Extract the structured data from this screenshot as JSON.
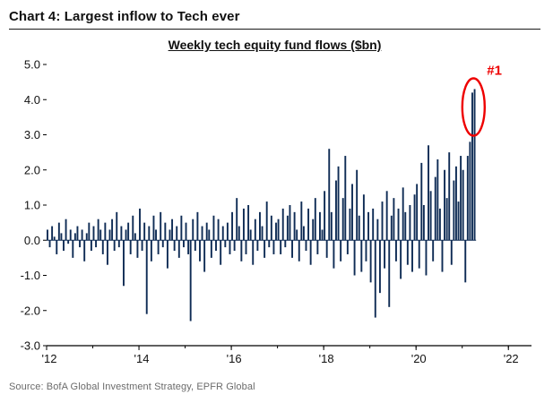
{
  "page": {
    "title": "Chart 4: Largest inflow to Tech ever",
    "source": "Source: BofA Global Investment Strategy, EPFR Global"
  },
  "chart_data": {
    "type": "bar",
    "title": "Weekly tech equity fund flows ($bn)",
    "ylabel": "",
    "xlabel": "",
    "ylim": [
      -3.0,
      5.0
    ],
    "y_tick_labels": [
      "5.0",
      "4.0",
      "3.0",
      "2.0",
      "1.0",
      "0.0",
      "-1.0",
      "-2.0",
      "-3.0"
    ],
    "x_axis": {
      "range_years": [
        2012,
        2022.5
      ],
      "major_ticks": [
        2012,
        2014,
        2016,
        2018,
        2020,
        2022
      ],
      "tick_labels": [
        "'12",
        "'14",
        "'16",
        "'18",
        "'20",
        "'22"
      ]
    },
    "series_start_year": 2012,
    "series_end_year": 2021.3,
    "bar_color": "#0f2c55",
    "grid": false,
    "legend": false,
    "annotation": {
      "label": "#1",
      "color": "#ee0000",
      "target": "max"
    },
    "values": [
      0.3,
      -0.2,
      0.4,
      0.1,
      -0.4,
      0.5,
      0.2,
      -0.3,
      0.6,
      -0.1,
      0.3,
      -0.5,
      0.2,
      0.4,
      -0.2,
      0.3,
      -0.6,
      0.2,
      0.5,
      -0.3,
      0.4,
      -0.2,
      0.6,
      0.3,
      -0.4,
      0.5,
      -0.7,
      0.3,
      0.6,
      -0.3,
      0.8,
      -0.2,
      0.4,
      -1.3,
      0.3,
      0.5,
      -0.4,
      0.7,
      0.2,
      -0.5,
      0.9,
      -0.3,
      0.5,
      -2.1,
      0.4,
      -0.6,
      0.7,
      0.3,
      -0.4,
      0.8,
      -0.2,
      0.5,
      -0.8,
      0.3,
      0.6,
      -0.3,
      0.4,
      -0.5,
      0.7,
      -0.2,
      0.5,
      -0.4,
      -2.3,
      0.6,
      -0.3,
      0.8,
      -0.6,
      0.4,
      -0.9,
      0.5,
      0.3,
      -0.5,
      0.7,
      -0.3,
      0.6,
      -0.7,
      0.4,
      -0.2,
      0.5,
      -0.4,
      0.8,
      -0.3,
      1.2,
      0.4,
      -0.6,
      0.9,
      -0.4,
      1.0,
      0.3,
      -0.7,
      0.6,
      -0.3,
      0.8,
      0.4,
      -0.5,
      1.1,
      -0.2,
      0.7,
      -0.4,
      0.5,
      0.6,
      -0.4,
      0.9,
      -0.2,
      0.7,
      1.0,
      -0.5,
      0.8,
      0.3,
      -0.6,
      1.1,
      0.4,
      -0.3,
      0.9,
      -0.7,
      0.6,
      1.2,
      -0.4,
      0.8,
      0.3,
      1.4,
      -0.5,
      2.6,
      0.8,
      -0.8,
      1.7,
      2.1,
      -0.6,
      1.2,
      2.4,
      -0.4,
      0.9,
      1.6,
      -1.0,
      2.0,
      0.7,
      -0.9,
      1.3,
      -0.6,
      0.8,
      -1.2,
      0.9,
      -2.2,
      0.6,
      -1.5,
      1.1,
      -0.8,
      1.4,
      -1.9,
      0.7,
      1.2,
      -0.6,
      0.9,
      -1.1,
      1.5,
      0.8,
      -0.7,
      1.0,
      -0.9,
      1.3,
      1.6,
      -0.8,
      2.2,
      1.0,
      -1.0,
      2.7,
      1.4,
      -0.6,
      1.8,
      2.3,
      0.9,
      -0.9,
      2.0,
      1.2,
      2.5,
      -0.7,
      1.7,
      2.1,
      1.1,
      2.4,
      2.0,
      -1.2,
      2.4,
      2.8,
      4.2,
      4.3
    ]
  }
}
